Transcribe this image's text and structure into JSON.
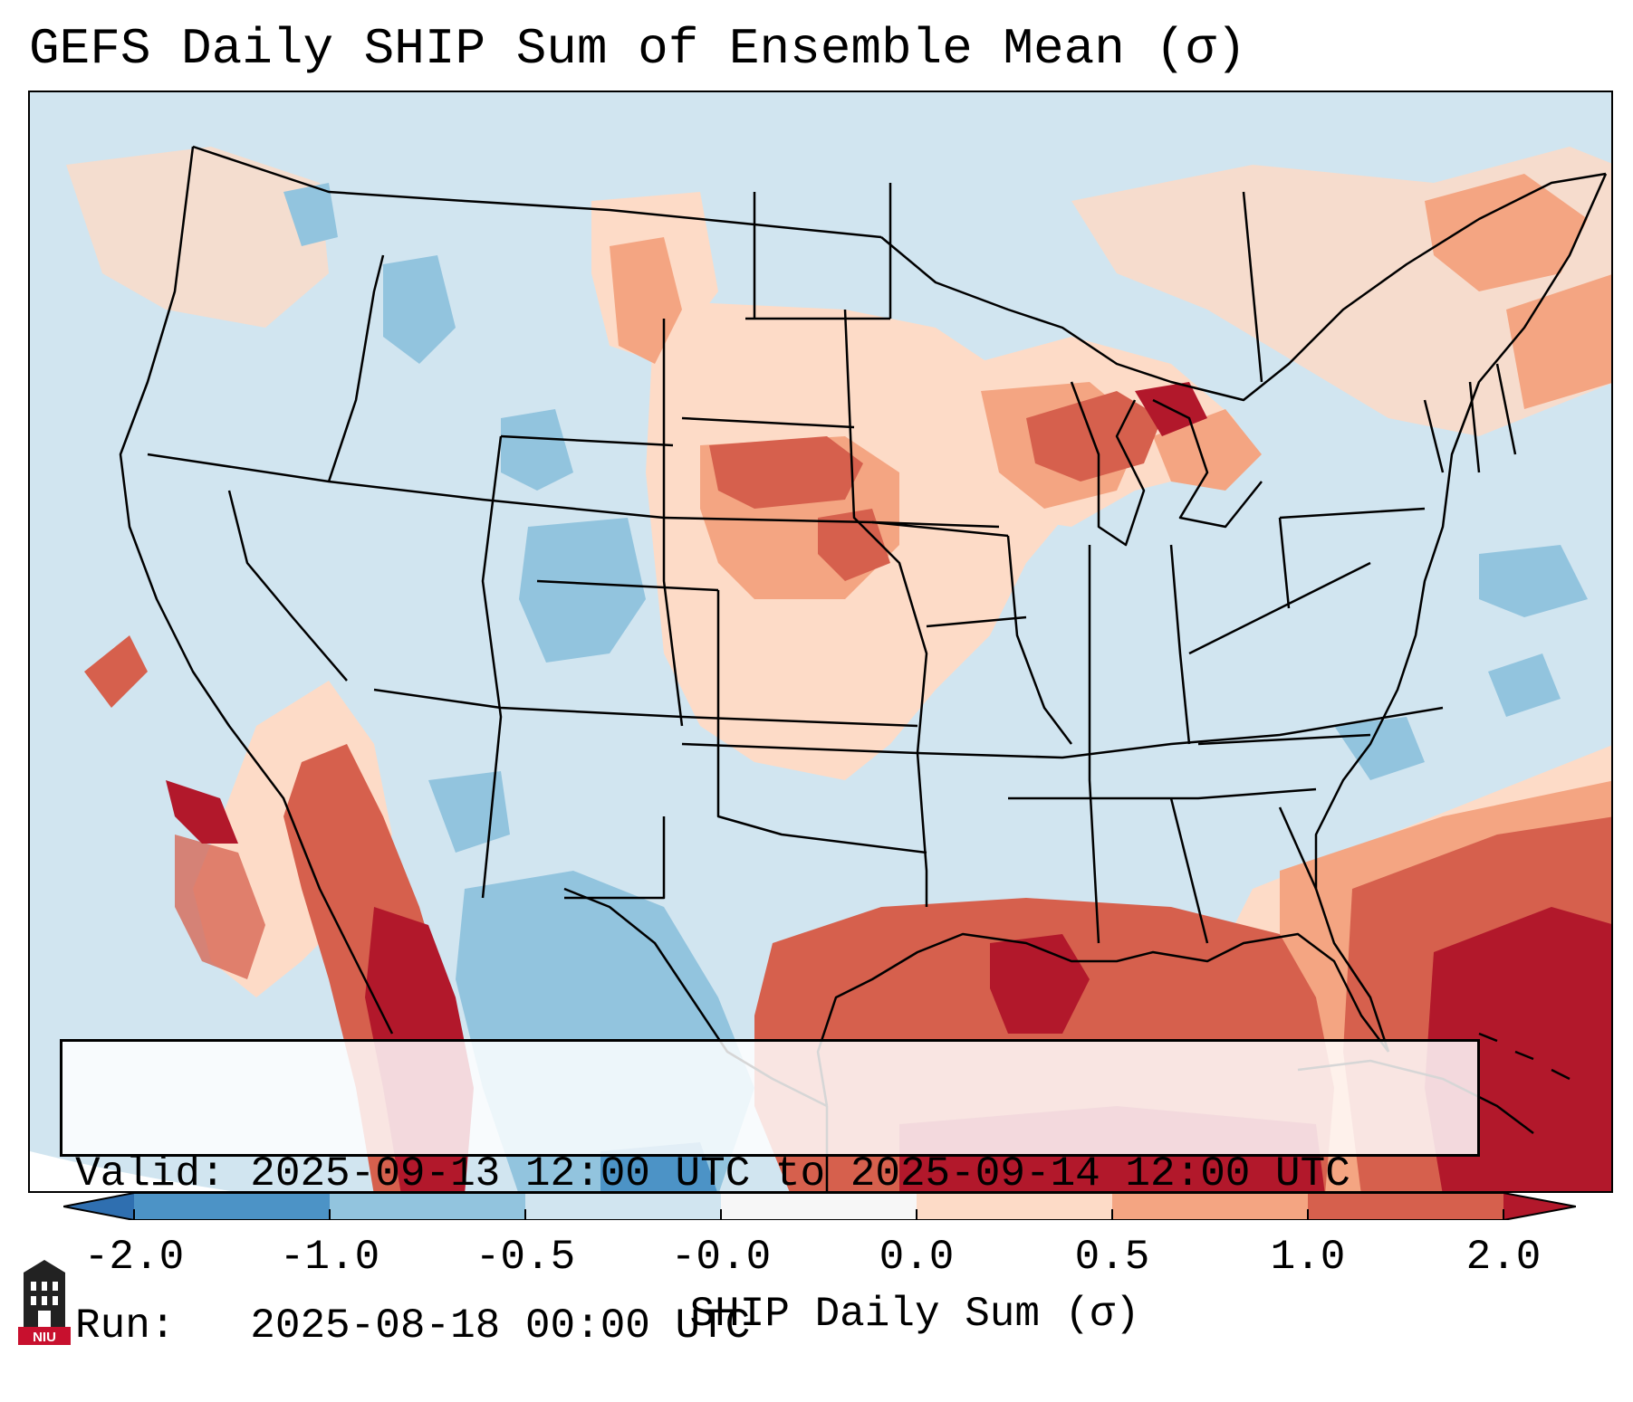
{
  "title": "GEFS Daily SHIP Sum of Ensemble Mean (σ)",
  "info": {
    "valid_line": "Valid: 2025-09-13 12:00 UTC to 2025-09-14 12:00 UTC",
    "run_line": "Run:   2025-08-18 00:00 UTC"
  },
  "colorbar": {
    "label": "SHIP Daily Sum (σ)",
    "ticks": [
      "-2.0",
      "-1.0",
      "-0.5",
      "-0.0",
      "0.0",
      "0.5",
      "1.0",
      "2.0"
    ],
    "colors": {
      "below_min": "#2f6fb0",
      "n2_n1": "#4c93c6",
      "n1_n05": "#92c4de",
      "n05_0": "#d1e5f0",
      "zero": "#f7f7f7",
      "p0_05": "#fddbc7",
      "p05_1": "#f4a582",
      "p1_2": "#d6604d",
      "above_max": "#b2182b"
    }
  },
  "logo": {
    "text": "NIU",
    "color": "#c8102e"
  },
  "map": {
    "ocean_color": "#d1e5f0",
    "border_color": "#000000"
  }
}
